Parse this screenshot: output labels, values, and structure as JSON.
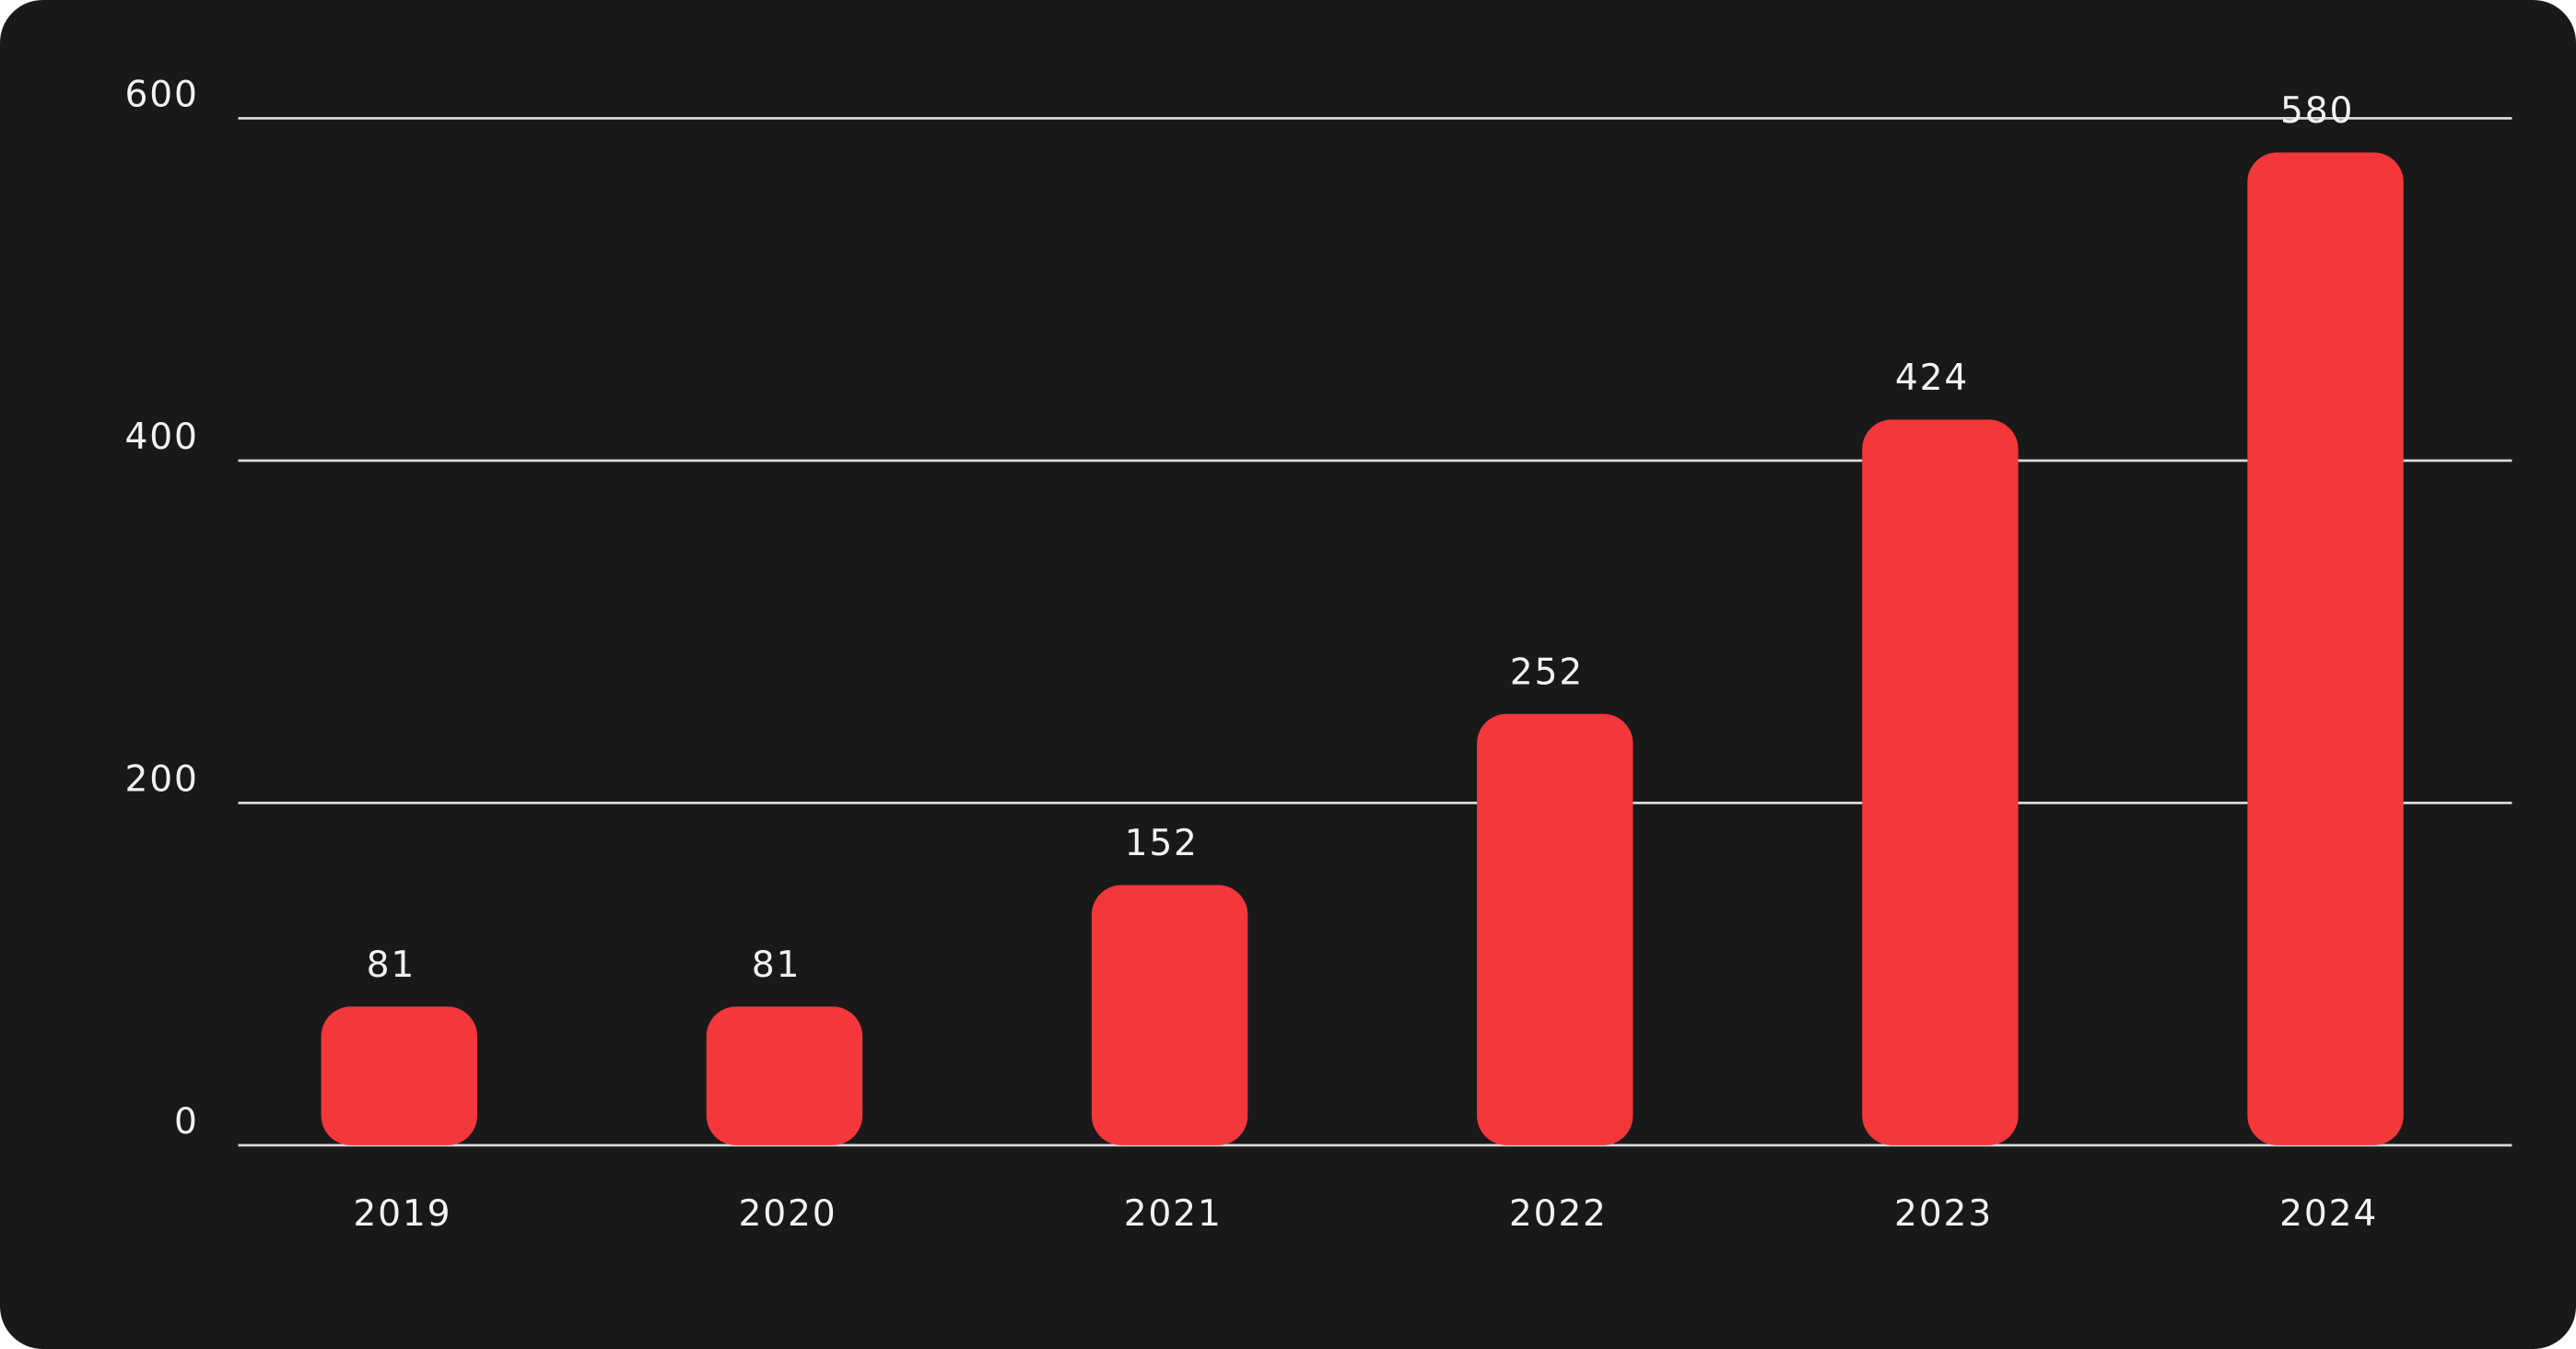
{
  "chart_data": {
    "type": "bar",
    "categories": [
      "2019",
      "2020",
      "2021",
      "2022",
      "2023",
      "2024"
    ],
    "values": [
      81,
      81,
      152,
      252,
      424,
      580
    ],
    "color": "#f3373a",
    "ylim": [
      0,
      600
    ],
    "yticks": [
      0,
      200,
      400,
      600
    ],
    "grid": true
  }
}
